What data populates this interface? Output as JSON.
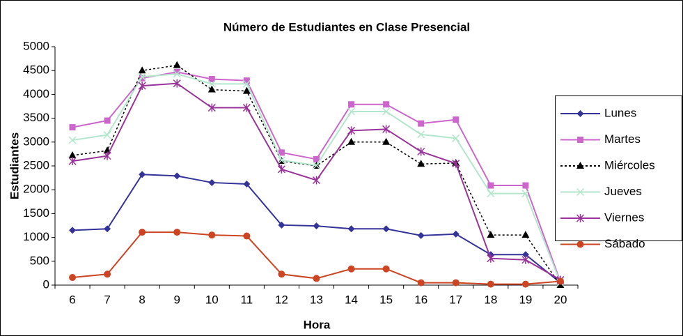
{
  "chart_data": {
    "type": "line",
    "title": "Número de Estudiantes en Clase Presencial",
    "x_label": "Hora",
    "y_label": "Estudiantes",
    "categories": [
      "6",
      "7",
      "8",
      "9",
      "10",
      "11",
      "12",
      "13",
      "14",
      "15",
      "16",
      "17",
      "18",
      "19",
      "20"
    ],
    "ylim": [
      0,
      5000
    ],
    "yticks": [
      0,
      500,
      1000,
      1500,
      2000,
      2500,
      3000,
      3500,
      4000,
      4500,
      5000
    ],
    "grid": false,
    "legend": "right",
    "series": [
      {
        "name": "Lunes",
        "color": "#333399",
        "marker": "diamond",
        "dash": "solid",
        "values": [
          1150,
          1180,
          2320,
          2290,
          2150,
          2120,
          1260,
          1240,
          1180,
          1180,
          1040,
          1070,
          640,
          640,
          50
        ]
      },
      {
        "name": "Martes",
        "color": "#cc66cc",
        "marker": "square",
        "dash": "solid",
        "values": [
          3310,
          3450,
          4340,
          4470,
          4320,
          4290,
          2780,
          2640,
          3790,
          3790,
          3390,
          3470,
          2090,
          2090,
          70
        ]
      },
      {
        "name": "Miércoles",
        "color": "#000000",
        "marker": "triangle",
        "dash": "dashed",
        "values": [
          2720,
          2820,
          4500,
          4610,
          4100,
          4070,
          2600,
          2500,
          3000,
          3000,
          2540,
          2560,
          1050,
          1050,
          0
        ]
      },
      {
        "name": "Jueves",
        "color": "#b3e6cc",
        "marker": "x",
        "dash": "solid",
        "values": [
          3040,
          3150,
          4370,
          4430,
          4220,
          4220,
          2620,
          2510,
          3640,
          3640,
          3160,
          3080,
          1920,
          1920,
          50
        ]
      },
      {
        "name": "Viernes",
        "color": "#993399",
        "marker": "star",
        "dash": "solid",
        "values": [
          2600,
          2710,
          4180,
          4230,
          3720,
          3720,
          2430,
          2200,
          3240,
          3270,
          2800,
          2550,
          560,
          530,
          110
        ]
      },
      {
        "name": "Sábado",
        "color": "#cc4422",
        "marker": "circle",
        "dash": "solid",
        "values": [
          160,
          230,
          1110,
          1110,
          1050,
          1030,
          230,
          140,
          340,
          340,
          50,
          50,
          20,
          20,
          80
        ]
      }
    ]
  }
}
